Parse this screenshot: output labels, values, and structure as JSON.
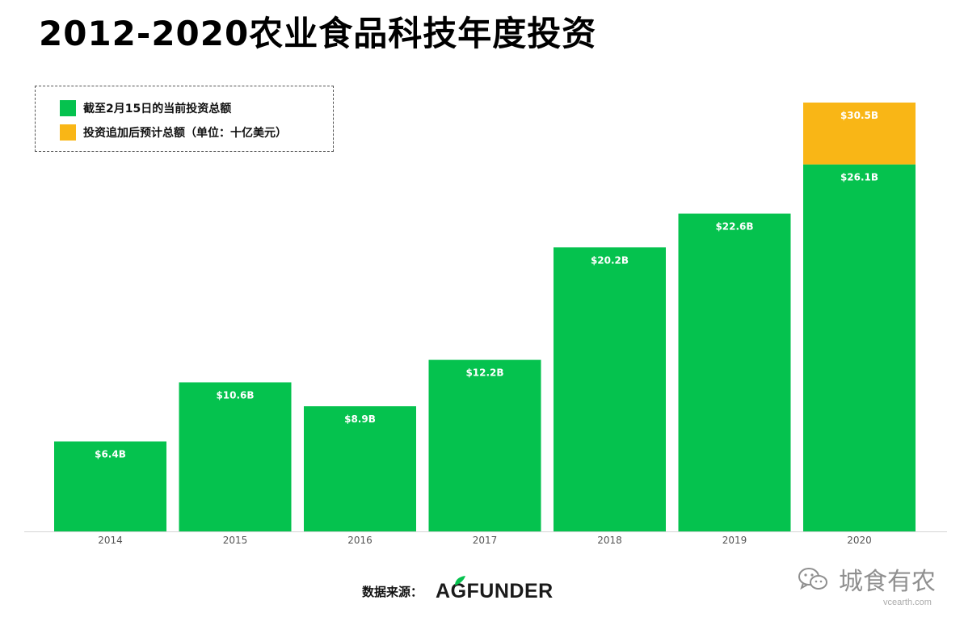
{
  "title": "2012-2020农业食品科技年度投资",
  "legend": [
    {
      "label": "截至2月15日的当前投资总额",
      "color": "#05c24e"
    },
    {
      "label": "投资追加后预计总额（单位：十亿美元）",
      "color": "#f9b616"
    }
  ],
  "chart_data": {
    "type": "bar",
    "stacked": true,
    "categories": [
      "2014",
      "2015",
      "2016",
      "2017",
      "2018",
      "2019",
      "2020"
    ],
    "series": [
      {
        "values": [
          6.4,
          10.6,
          8.9,
          12.2,
          20.2,
          22.6,
          26.1
        ],
        "labels": [
          "$6.4B",
          "$10.6B",
          "$8.9B",
          "$12.2B",
          "$20.2B",
          "$22.6B",
          "$26.1B"
        ],
        "color": "#05c24e"
      },
      {
        "values": [
          0,
          0,
          0,
          0,
          0,
          0,
          4.4
        ],
        "labels": [
          "",
          "",
          "",
          "",
          "",
          "",
          "$30.5B"
        ],
        "color": "#f9b616"
      }
    ],
    "totals": [
      6.4,
      10.6,
      8.9,
      12.2,
      20.2,
      22.6,
      30.5
    ],
    "ylim": [
      0,
      30.5
    ],
    "grid": false,
    "legend_position": "top-left"
  },
  "footer": {
    "source_label": "数据来源：",
    "logo_text": "AGFUNDER"
  },
  "watermark": {
    "text": "城食有农",
    "sub": "vcearth.com"
  }
}
